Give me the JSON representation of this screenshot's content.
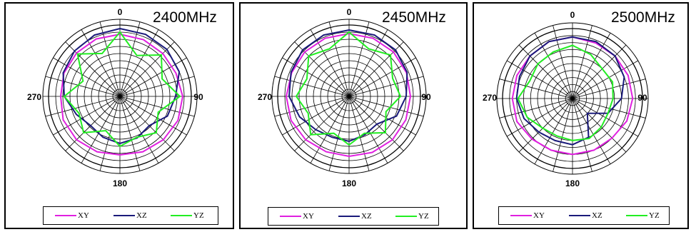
{
  "colors": {
    "XY": "#e020e0",
    "XZ": "#1a1a7a",
    "YZ": "#22ee22"
  },
  "legend": {
    "xy": "XY",
    "xz": "XZ",
    "yz": "YZ"
  },
  "chart_data": [
    {
      "type": "line",
      "title": "2400MHz",
      "angle_labels": [
        "0",
        "90",
        "180",
        "270"
      ],
      "angles_deg": [
        0,
        22.5,
        45,
        67.5,
        90,
        112.5,
        135,
        157.5,
        180,
        202.5,
        225,
        247.5,
        270,
        292.5,
        315,
        337.5
      ],
      "series": [
        {
          "name": "XY",
          "values": [
            0.87,
            0.86,
            0.85,
            0.85,
            0.88,
            0.88,
            0.86,
            0.84,
            0.82,
            0.84,
            0.86,
            0.86,
            0.83,
            0.85,
            0.86,
            0.87
          ]
        },
        {
          "name": "XZ",
          "values": [
            0.95,
            0.94,
            0.93,
            0.9,
            0.78,
            0.72,
            0.58,
            0.63,
            0.66,
            0.62,
            0.58,
            0.66,
            0.78,
            0.86,
            0.9,
            0.93
          ]
        },
        {
          "name": "YZ",
          "values": [
            0.9,
            0.62,
            0.82,
            0.64,
            0.84,
            0.58,
            0.72,
            0.62,
            0.7,
            0.52,
            0.72,
            0.62,
            0.78,
            0.56,
            0.84,
            0.65
          ]
        }
      ]
    },
    {
      "type": "line",
      "title": "2450MHz",
      "angle_labels": [
        "0",
        "90",
        "180",
        "270"
      ],
      "angles_deg": [
        0,
        22.5,
        45,
        67.5,
        90,
        112.5,
        135,
        157.5,
        180,
        202.5,
        225,
        247.5,
        270,
        292.5,
        315,
        337.5
      ],
      "series": [
        {
          "name": "XY",
          "values": [
            0.88,
            0.88,
            0.88,
            0.87,
            0.86,
            0.86,
            0.86,
            0.85,
            0.84,
            0.84,
            0.86,
            0.88,
            0.88,
            0.87,
            0.88,
            0.88
          ]
        },
        {
          "name": "XZ",
          "values": [
            0.93,
            0.93,
            0.92,
            0.88,
            0.8,
            0.72,
            0.55,
            0.58,
            0.63,
            0.62,
            0.66,
            0.75,
            0.84,
            0.88,
            0.92,
            0.93
          ]
        },
        {
          "name": "YZ",
          "values": [
            0.9,
            0.72,
            0.82,
            0.66,
            0.72,
            0.56,
            0.72,
            0.56,
            0.68,
            0.56,
            0.76,
            0.62,
            0.74,
            0.64,
            0.8,
            0.72
          ]
        }
      ]
    },
    {
      "type": "line",
      "title": "2500MHz",
      "angle_labels": [
        "0",
        "90",
        "180",
        "270"
      ],
      "angles_deg": [
        0,
        22.5,
        45,
        67.5,
        90,
        112.5,
        135,
        157.5,
        180,
        202.5,
        225,
        247.5,
        270,
        292.5,
        315,
        337.5
      ],
      "series": [
        {
          "name": "XY",
          "values": [
            0.88,
            0.86,
            0.86,
            0.86,
            0.86,
            0.84,
            0.8,
            0.8,
            0.8,
            0.8,
            0.82,
            0.86,
            0.86,
            0.86,
            0.86,
            0.88
          ]
        },
        {
          "name": "XZ",
          "values": [
            0.88,
            0.88,
            0.86,
            0.8,
            0.7,
            0.55,
            0.3,
            0.6,
            0.66,
            0.65,
            0.68,
            0.75,
            0.8,
            0.82,
            0.86,
            0.88
          ]
        },
        {
          "name": "YZ",
          "values": [
            0.76,
            0.68,
            0.6,
            0.62,
            0.58,
            0.55,
            0.58,
            0.62,
            0.6,
            0.58,
            0.6,
            0.7,
            0.78,
            0.66,
            0.7,
            0.72
          ]
        }
      ]
    }
  ]
}
